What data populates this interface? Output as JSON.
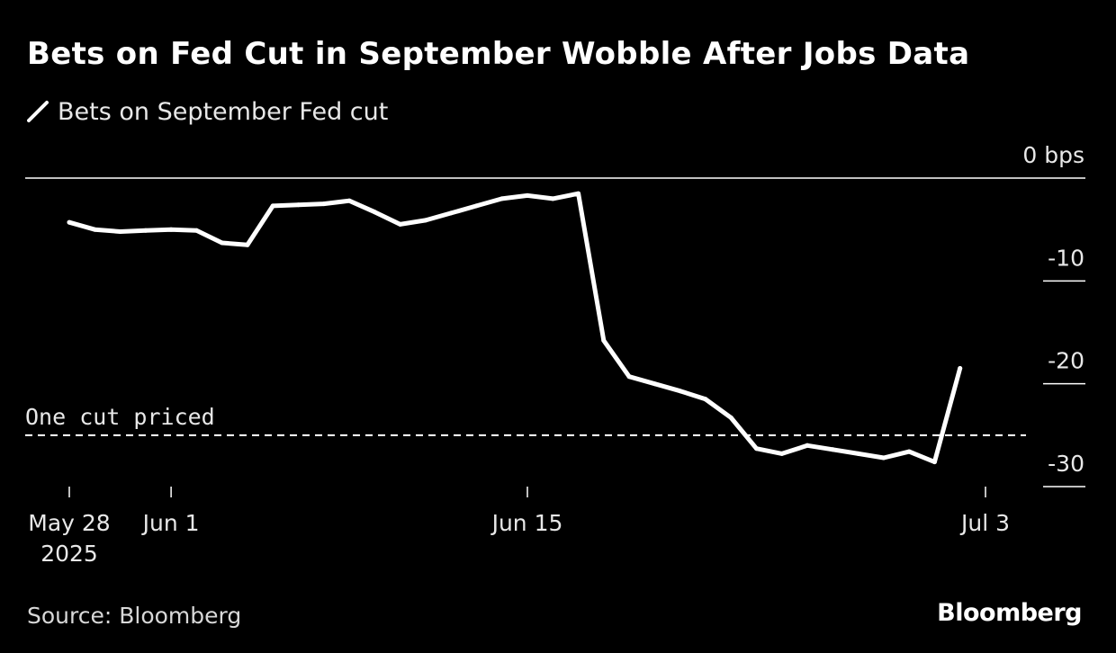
{
  "header": {
    "title": "Bets on Fed Cut in September Wobble After Jobs Data"
  },
  "legend": {
    "label": "Bets on September Fed cut",
    "color": "#ffffff"
  },
  "footer": {
    "source": "Source: Bloomberg",
    "brand": "Bloomberg"
  },
  "chart_data": {
    "type": "line",
    "title": "Bets on Fed Cut in September Wobble After Jobs Data",
    "xlabel": "",
    "ylabel": "bps",
    "ylim": [
      -30,
      0
    ],
    "x_domain": [
      0,
      36
    ],
    "y_ticks": [
      {
        "value": 0,
        "label": "0 bps"
      },
      {
        "value": -10,
        "label": "-10"
      },
      {
        "value": -20,
        "label": "-20"
      },
      {
        "value": -30,
        "label": "-30"
      }
    ],
    "x_ticks": [
      {
        "day": 0,
        "label": "May 28",
        "sublabel": "2025"
      },
      {
        "day": 4,
        "label": "Jun 1",
        "sublabel": ""
      },
      {
        "day": 18,
        "label": "Jun 15",
        "sublabel": ""
      },
      {
        "day": 36,
        "label": "Jul 3",
        "sublabel": ""
      }
    ],
    "reference_line": {
      "value": -25,
      "label": "One cut priced"
    },
    "series": [
      {
        "name": "Bets on September Fed cut",
        "color": "#ffffff",
        "points": [
          [
            0,
            -4.3
          ],
          [
            1,
            -5.0
          ],
          [
            2,
            -5.2
          ],
          [
            3,
            -5.1
          ],
          [
            4,
            -5.0
          ],
          [
            5,
            -5.1
          ],
          [
            6,
            -6.3
          ],
          [
            7,
            -6.5
          ],
          [
            8,
            -2.7
          ],
          [
            9,
            -2.6
          ],
          [
            10,
            -2.5
          ],
          [
            11,
            -2.2
          ],
          [
            12,
            -3.3
          ],
          [
            13,
            -4.5
          ],
          [
            14,
            -4.1
          ],
          [
            15,
            -3.4
          ],
          [
            16,
            -2.7
          ],
          [
            17,
            -2.0
          ],
          [
            18,
            -1.7
          ],
          [
            19,
            -2.0
          ],
          [
            20,
            -1.5
          ],
          [
            21,
            -15.8
          ],
          [
            22,
            -19.3
          ],
          [
            23,
            -20.0
          ],
          [
            24,
            -20.7
          ],
          [
            25,
            -21.5
          ],
          [
            26,
            -23.3
          ],
          [
            27,
            -26.3
          ],
          [
            28,
            -26.8
          ],
          [
            29,
            -26.0
          ],
          [
            30,
            -26.4
          ],
          [
            31,
            -26.8
          ],
          [
            32,
            -27.2
          ],
          [
            33,
            -26.6
          ],
          [
            34,
            -27.6
          ],
          [
            35,
            -18.5
          ]
        ]
      }
    ]
  }
}
